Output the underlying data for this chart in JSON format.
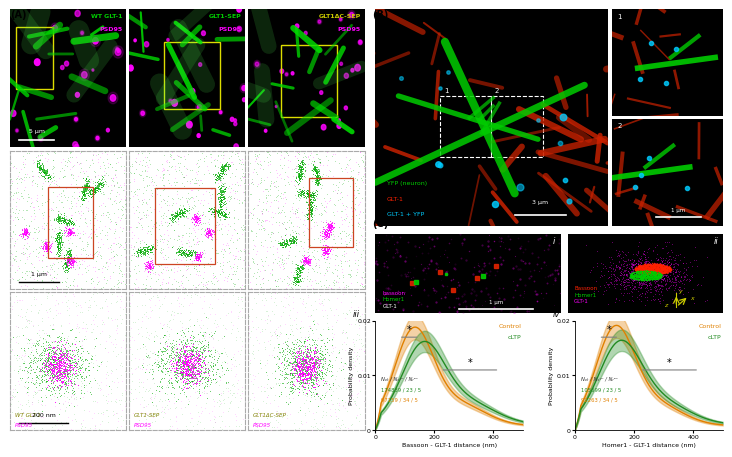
{
  "panel_A_label": "(A)",
  "panel_B_label": "(B)",
  "panel_C_label": "(C)",
  "plot_iii_xlabel": "Bassoon - GLT-1 distance (nm)",
  "plot_iii_ylabel": "Probability density",
  "plot_iii_control_color": "#e08000",
  "plot_iii_cltp_color": "#228B22",
  "plot_iii_control_label": "Control",
  "plot_iii_cltp_label": "cLTP",
  "plot_iii_annot_line1": "Nₒₜ / Nₛʸⁿ / Nᵣᵉᶜ",
  "plot_iii_annot_line2_green": "174839 / 23 / 5",
  "plot_iii_annot_line2_orange": "97159 / 34 / 5",
  "plot_iv_xlabel": "Homer1 - GLT-1 distance (nm)",
  "plot_iv_annot_line2_green": "105699 / 23 / 5",
  "plot_iv_annot_line2_orange": "92263 / 34 / 5",
  "control_color": "#e08000",
  "cltp_color": "#228B22",
  "green": "#00cc00",
  "magenta": "#ff00ff",
  "red": "#cc2200",
  "cyan": "#00ccff",
  "yellow_roi": "#cccc00",
  "orange_roi": "#cc5533",
  "dark_gray_spine": "#555555"
}
